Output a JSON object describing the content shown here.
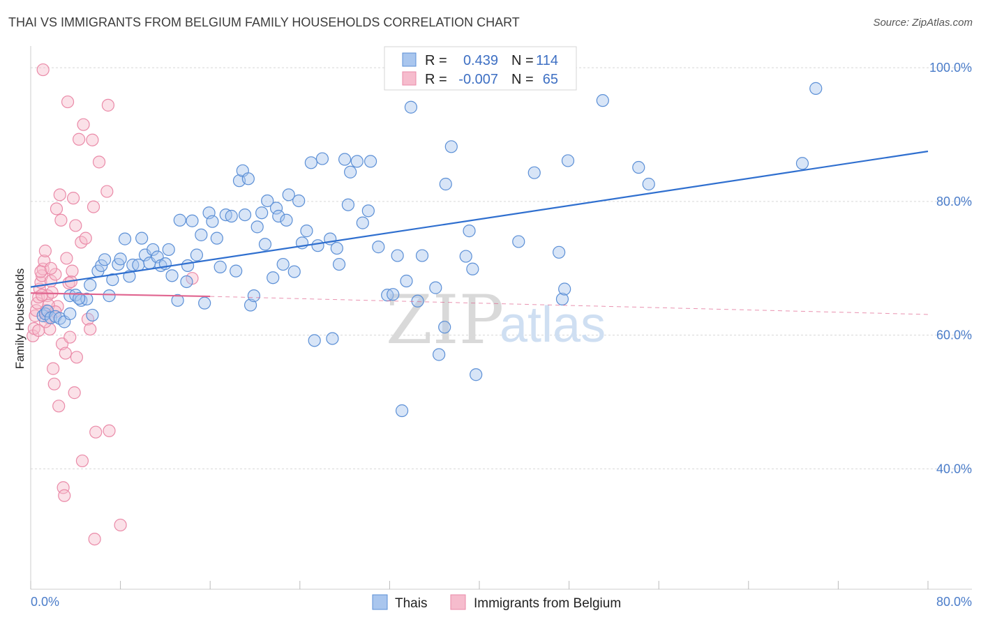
{
  "header": {
    "title": "THAI VS IMMIGRANTS FROM BELGIUM FAMILY HOUSEHOLDS CORRELATION CHART",
    "source": "Source: ZipAtlas.com"
  },
  "watermark": {
    "zip": "ZIP",
    "atlas": "atlas"
  },
  "colors": {
    "blue_fill": "#a9c6ee",
    "blue_stroke": "#5b8fd6",
    "blue_line": "#2f6fcf",
    "pink_fill": "#f6bccd",
    "pink_stroke": "#ea8aa8",
    "pink_line": "#e0648f",
    "grid": "#d8d8d8",
    "tick_label": "#4a7cc9"
  },
  "legend": {
    "rows": [
      {
        "r_label": "R =",
        "r_value": "0.439",
        "n_label": "N =",
        "n_value": "114"
      },
      {
        "r_label": "R =",
        "r_value": "-0.007",
        "n_label": "N =",
        "n_value": "65"
      }
    ]
  },
  "chart_data": {
    "type": "scatter",
    "title": "THAI VS IMMIGRANTS FROM BELGIUM FAMILY HOUSEHOLDS CORRELATION CHART",
    "xlabel": "",
    "ylabel": "Family Households",
    "xlim": [
      0,
      80
    ],
    "ylim": [
      22,
      102
    ],
    "x_tick_labels": [
      "0.0%",
      "80.0%"
    ],
    "y_ticks": [
      40,
      60,
      80,
      100
    ],
    "y_tick_labels": [
      "40.0%",
      "60.0%",
      "80.0%",
      "100.0%"
    ],
    "grid": true,
    "legend_position": "bottom-center",
    "series": [
      {
        "name": "Thais",
        "r": 0.439,
        "n": 114,
        "trend": {
          "x": [
            0,
            80
          ],
          "y": [
            67.2,
            87.5
          ],
          "style": "solid"
        },
        "points": [
          [
            1.1,
            62.9
          ],
          [
            1.3,
            63.2
          ],
          [
            1.5,
            63.6
          ],
          [
            1.8,
            62.6
          ],
          [
            2.2,
            62.8
          ],
          [
            2.6,
            62.5
          ],
          [
            3.0,
            62.0
          ],
          [
            3.5,
            65.9
          ],
          [
            4.0,
            66.0
          ],
          [
            4.5,
            65.2
          ],
          [
            5.0,
            65.4
          ],
          [
            5.3,
            67.5
          ],
          [
            5.5,
            63.0
          ],
          [
            6.0,
            69.6
          ],
          [
            6.3,
            70.4
          ],
          [
            6.6,
            71.3
          ],
          [
            7.0,
            65.9
          ],
          [
            7.3,
            68.3
          ],
          [
            7.8,
            70.6
          ],
          [
            8.0,
            71.4
          ],
          [
            8.4,
            74.4
          ],
          [
            8.8,
            68.8
          ],
          [
            9.1,
            70.5
          ],
          [
            9.6,
            70.5
          ],
          [
            9.9,
            74.5
          ],
          [
            10.2,
            72.0
          ],
          [
            10.6,
            70.8
          ],
          [
            10.9,
            72.8
          ],
          [
            11.3,
            71.7
          ],
          [
            11.6,
            70.4
          ],
          [
            12.0,
            70.7
          ],
          [
            12.3,
            72.8
          ],
          [
            12.6,
            68.9
          ],
          [
            13.1,
            65.2
          ],
          [
            13.3,
            77.2
          ],
          [
            13.9,
            68.0
          ],
          [
            14.0,
            70.4
          ],
          [
            14.4,
            77.1
          ],
          [
            14.8,
            72.0
          ],
          [
            15.2,
            75.0
          ],
          [
            15.5,
            64.8
          ],
          [
            15.9,
            78.3
          ],
          [
            16.2,
            77.0
          ],
          [
            16.6,
            74.5
          ],
          [
            16.9,
            70.2
          ],
          [
            17.4,
            78.0
          ],
          [
            17.9,
            77.8
          ],
          [
            18.3,
            69.6
          ],
          [
            18.6,
            83.1
          ],
          [
            18.9,
            84.6
          ],
          [
            19.1,
            78.0
          ],
          [
            19.4,
            83.4
          ],
          [
            19.6,
            64.5
          ],
          [
            19.9,
            65.9
          ],
          [
            20.2,
            76.2
          ],
          [
            20.6,
            78.3
          ],
          [
            20.9,
            73.6
          ],
          [
            21.1,
            80.1
          ],
          [
            21.6,
            68.6
          ],
          [
            21.9,
            79.0
          ],
          [
            22.1,
            77.8
          ],
          [
            22.5,
            70.6
          ],
          [
            22.8,
            77.2
          ],
          [
            23.0,
            81.0
          ],
          [
            23.5,
            69.5
          ],
          [
            23.9,
            80.1
          ],
          [
            24.2,
            73.8
          ],
          [
            24.6,
            75.6
          ],
          [
            25.0,
            85.8
          ],
          [
            25.3,
            59.2
          ],
          [
            25.6,
            73.4
          ],
          [
            26.0,
            86.4
          ],
          [
            26.7,
            74.4
          ],
          [
            26.9,
            59.5
          ],
          [
            27.3,
            73.0
          ],
          [
            27.5,
            70.6
          ],
          [
            28.0,
            86.3
          ],
          [
            28.3,
            79.5
          ],
          [
            28.5,
            84.4
          ],
          [
            29.1,
            86.0
          ],
          [
            29.6,
            76.8
          ],
          [
            30.1,
            78.6
          ],
          [
            30.3,
            86.0
          ],
          [
            31.0,
            73.2
          ],
          [
            31.8,
            66.0
          ],
          [
            32.3,
            66.1
          ],
          [
            32.7,
            71.9
          ],
          [
            33.1,
            48.7
          ],
          [
            33.5,
            68.1
          ],
          [
            33.9,
            94.1
          ],
          [
            34.5,
            65.1
          ],
          [
            34.9,
            71.9
          ],
          [
            36.1,
            67.1
          ],
          [
            36.4,
            57.1
          ],
          [
            36.9,
            61.2
          ],
          [
            37.0,
            82.6
          ],
          [
            37.5,
            88.2
          ],
          [
            38.8,
            71.8
          ],
          [
            39.1,
            75.6
          ],
          [
            39.4,
            69.9
          ],
          [
            39.7,
            54.1
          ],
          [
            43.5,
            74.0
          ],
          [
            44.9,
            84.3
          ],
          [
            47.1,
            72.4
          ],
          [
            47.4,
            65.4
          ],
          [
            47.6,
            66.9
          ],
          [
            47.9,
            86.1
          ],
          [
            51.0,
            95.1
          ],
          [
            54.2,
            85.1
          ],
          [
            55.1,
            82.6
          ],
          [
            68.8,
            85.7
          ],
          [
            70.0,
            96.9
          ],
          [
            3.5,
            63.2
          ],
          [
            4.3,
            65.5
          ]
        ]
      },
      {
        "name": "Immigrants from Belgium",
        "r": -0.007,
        "n": 65,
        "trend": {
          "x": [
            0,
            16
          ],
          "y": [
            66.3,
            65.8
          ],
          "style": "solid",
          "extended_x": [
            16,
            80
          ],
          "extended_y": [
            65.8,
            63.1
          ],
          "extended_style": "dashed"
        },
        "points": [
          [
            0.2,
            59.9
          ],
          [
            0.3,
            61.0
          ],
          [
            0.4,
            62.9
          ],
          [
            0.5,
            63.7
          ],
          [
            0.6,
            64.8
          ],
          [
            0.7,
            65.7
          ],
          [
            0.8,
            66.9
          ],
          [
            0.9,
            67.9
          ],
          [
            1.0,
            68.9
          ],
          [
            1.1,
            69.9
          ],
          [
            1.2,
            71.1
          ],
          [
            1.3,
            72.6
          ],
          [
            1.4,
            63.7
          ],
          [
            1.5,
            65.9
          ],
          [
            1.6,
            62.6
          ],
          [
            1.7,
            60.9
          ],
          [
            1.8,
            68.1
          ],
          [
            1.9,
            66.4
          ],
          [
            2.0,
            55.0
          ],
          [
            2.1,
            52.7
          ],
          [
            2.2,
            69.1
          ],
          [
            2.3,
            78.9
          ],
          [
            2.4,
            64.3
          ],
          [
            2.5,
            49.4
          ],
          [
            2.6,
            81.0
          ],
          [
            2.7,
            77.2
          ],
          [
            2.8,
            58.7
          ],
          [
            2.9,
            37.2
          ],
          [
            3.0,
            36.0
          ],
          [
            3.1,
            57.3
          ],
          [
            3.2,
            71.5
          ],
          [
            3.3,
            94.9
          ],
          [
            3.4,
            67.8
          ],
          [
            3.5,
            59.7
          ],
          [
            3.6,
            68.0
          ],
          [
            3.7,
            69.6
          ],
          [
            3.8,
            80.5
          ],
          [
            3.9,
            51.4
          ],
          [
            4.0,
            76.4
          ],
          [
            4.1,
            56.7
          ],
          [
            4.3,
            89.3
          ],
          [
            4.5,
            73.9
          ],
          [
            4.6,
            41.2
          ],
          [
            4.7,
            91.5
          ],
          [
            4.9,
            74.5
          ],
          [
            5.1,
            62.4
          ],
          [
            5.3,
            60.9
          ],
          [
            5.5,
            89.2
          ],
          [
            5.6,
            79.2
          ],
          [
            5.7,
            29.5
          ],
          [
            5.8,
            45.5
          ],
          [
            6.1,
            85.9
          ],
          [
            6.8,
            81.5
          ],
          [
            6.9,
            94.4
          ],
          [
            7.0,
            45.7
          ],
          [
            8.0,
            31.6
          ],
          [
            14.4,
            68.5
          ],
          [
            1.1,
            99.7
          ],
          [
            1.3,
            62.0
          ],
          [
            1.0,
            66.0
          ],
          [
            0.9,
            69.5
          ],
          [
            1.6,
            64.5
          ],
          [
            2.2,
            63.5
          ],
          [
            1.8,
            70.0
          ],
          [
            0.7,
            60.7
          ]
        ]
      }
    ]
  }
}
